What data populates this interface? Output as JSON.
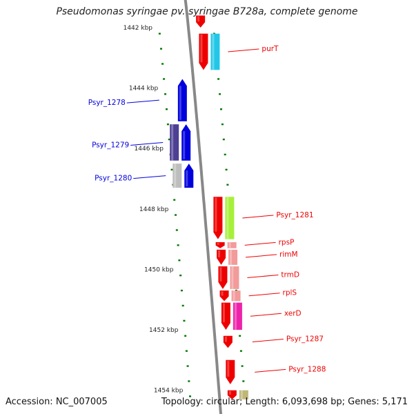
{
  "title": "Pseudomonas syringae pv. syringae B728a, complete genome",
  "accession": "Accession: NC_007005",
  "topology": "Topology: circular; Length: 6,093,698 bp; Genes: 5,171",
  "scale": {
    "unit": "kbp",
    "ticks": [
      {
        "label": "1442 kbp",
        "kbp": 1442
      },
      {
        "label": "1444 kbp",
        "kbp": 1444
      },
      {
        "label": "1446 kbp",
        "kbp": 1446
      },
      {
        "label": "1448 kbp",
        "kbp": 1448
      },
      {
        "label": "1450 kbp",
        "kbp": 1450
      },
      {
        "label": "1452 kbp",
        "kbp": 1452
      },
      {
        "label": "1454 kbp",
        "kbp": 1454
      }
    ]
  },
  "colors": {
    "forward": "#0000dd",
    "reverse": "#ee0000",
    "backbone": "#888888",
    "tick": "#007700"
  },
  "genes": [
    {
      "name": "",
      "strand": "-",
      "start": 1441.6,
      "end": 1442.0,
      "color": "#ee0000"
    },
    {
      "name": "purT",
      "strand": "-",
      "start": 1442.2,
      "end": 1443.4,
      "color": "#ee0000",
      "cog_color": "#22c7e8"
    },
    {
      "name": "Psyr_1278",
      "strand": "+",
      "start": 1443.7,
      "end": 1445.1,
      "color": "#0000dd"
    },
    {
      "name": "Psyr_1279",
      "strand": "+",
      "start": 1445.2,
      "end": 1446.4,
      "color": "#0000dd",
      "cog_color": "#4c3f94"
    },
    {
      "name": "Psyr_1280",
      "strand": "+",
      "start": 1446.5,
      "end": 1447.3,
      "color": "#0000dd",
      "cog_color": "#bdbdbd"
    },
    {
      "name": "Psyr_1281",
      "strand": "-",
      "start": 1447.6,
      "end": 1449.0,
      "color": "#ee0000",
      "cog_color": "#a6f03a"
    },
    {
      "name": "rpsP",
      "strand": "-",
      "start": 1449.1,
      "end": 1449.3,
      "color": "#ee0000",
      "cog_color": "#f39a9a"
    },
    {
      "name": "rimM",
      "strand": "-",
      "start": 1449.35,
      "end": 1449.85,
      "color": "#ee0000",
      "cog_color": "#f39a9a"
    },
    {
      "name": "trmD",
      "strand": "-",
      "start": 1449.9,
      "end": 1450.65,
      "color": "#ee0000",
      "cog_color": "#f39a9a"
    },
    {
      "name": "rplS",
      "strand": "-",
      "start": 1450.7,
      "end": 1451.05,
      "color": "#ee0000",
      "cog_color": "#f39a9a"
    },
    {
      "name": "xerD",
      "strand": "-",
      "start": 1451.1,
      "end": 1452.0,
      "color": "#ee0000",
      "cog_color": "#ee22aa"
    },
    {
      "name": "Psyr_1287",
      "strand": "-",
      "start": 1452.2,
      "end": 1452.6,
      "color": "#ee0000"
    },
    {
      "name": "Psyr_1288",
      "strand": "-",
      "start": 1453.0,
      "end": 1453.8,
      "color": "#ee0000"
    },
    {
      "name": "",
      "strand": "-",
      "start": 1454.0,
      "end": 1454.3,
      "color": "#ee0000",
      "cog_color": "#bfb67a"
    }
  ]
}
